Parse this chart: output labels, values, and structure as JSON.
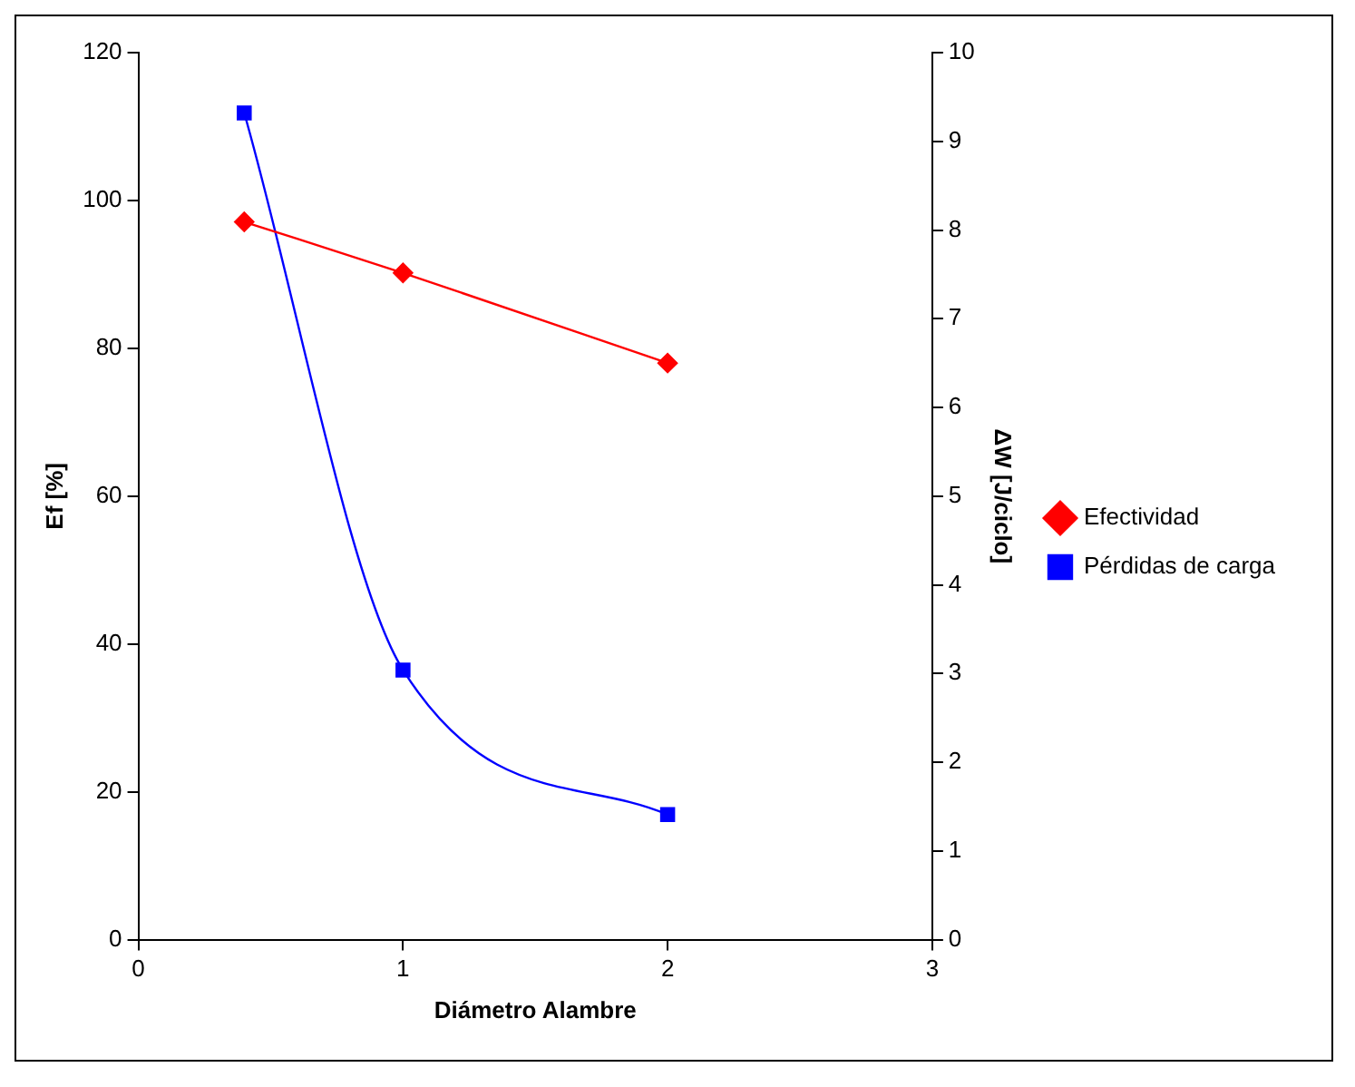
{
  "chart_data": {
    "type": "line",
    "xlabel": "Diámetro Alambre",
    "ylabel": "Ef [%]",
    "y2label": "ΔW [J/ciclo]",
    "x": [
      0.4,
      1,
      2
    ],
    "series": [
      {
        "name": "Efectividad",
        "color": "#ff0000",
        "values": [
          97.1,
          90.2,
          78.0
        ],
        "marker": "diamond"
      },
      {
        "name": "Pérdidas de carga",
        "color": "#0000ff",
        "values": [
          9.32,
          3.04,
          1.41
        ],
        "axis": "y2",
        "marker": "square"
      }
    ],
    "xlim": [
      0,
      3
    ],
    "xticks": [
      0,
      1,
      2,
      3
    ],
    "ylim": [
      0,
      120
    ],
    "yticks": [
      0,
      20,
      40,
      60,
      80,
      100,
      120
    ],
    "y2lim": [
      0,
      10
    ],
    "y2ticks": [
      0,
      1,
      2,
      3,
      4,
      5,
      6,
      7,
      8,
      9,
      10
    ],
    "grid": false,
    "legend": "right",
    "line_style": "solid"
  }
}
